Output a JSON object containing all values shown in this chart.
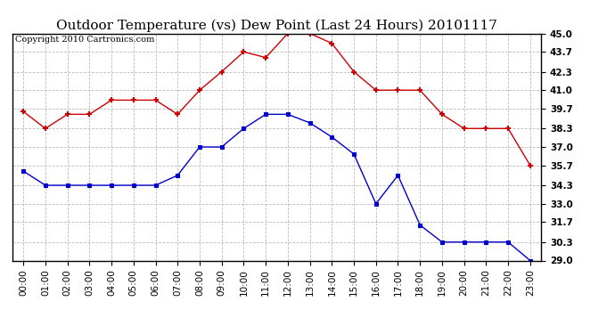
{
  "title": "Outdoor Temperature (vs) Dew Point (Last 24 Hours) 20101117",
  "copyright": "Copyright 2010 Cartronics.com",
  "hours": [
    "00:00",
    "01:00",
    "02:00",
    "03:00",
    "04:00",
    "05:00",
    "06:00",
    "07:00",
    "08:00",
    "09:00",
    "10:00",
    "11:00",
    "12:00",
    "13:00",
    "14:00",
    "15:00",
    "16:00",
    "17:00",
    "18:00",
    "19:00",
    "20:00",
    "21:00",
    "22:00",
    "23:00"
  ],
  "temp": [
    39.5,
    38.3,
    39.3,
    39.3,
    40.3,
    40.3,
    40.3,
    39.3,
    41.0,
    42.3,
    43.7,
    43.3,
    45.0,
    45.0,
    44.3,
    42.3,
    41.0,
    41.0,
    41.0,
    39.3,
    38.3,
    38.3,
    38.3,
    35.7
  ],
  "dew": [
    35.3,
    34.3,
    34.3,
    34.3,
    34.3,
    34.3,
    34.3,
    35.0,
    37.0,
    37.0,
    38.3,
    39.3,
    39.3,
    38.7,
    37.7,
    36.5,
    33.0,
    35.0,
    31.5,
    30.3,
    30.3,
    30.3,
    30.3,
    29.0
  ],
  "temp_color": "#cc0000",
  "dew_color": "#0000cc",
  "bg_color": "#ffffff",
  "grid_color": "#bbbbbb",
  "ylim_min": 29.0,
  "ylim_max": 45.0,
  "yticks": [
    29.0,
    30.3,
    31.7,
    33.0,
    34.3,
    35.7,
    37.0,
    38.3,
    39.7,
    41.0,
    42.3,
    43.7,
    45.0
  ],
  "title_fontsize": 11,
  "copyright_fontsize": 7,
  "axis_fontsize": 7.5
}
